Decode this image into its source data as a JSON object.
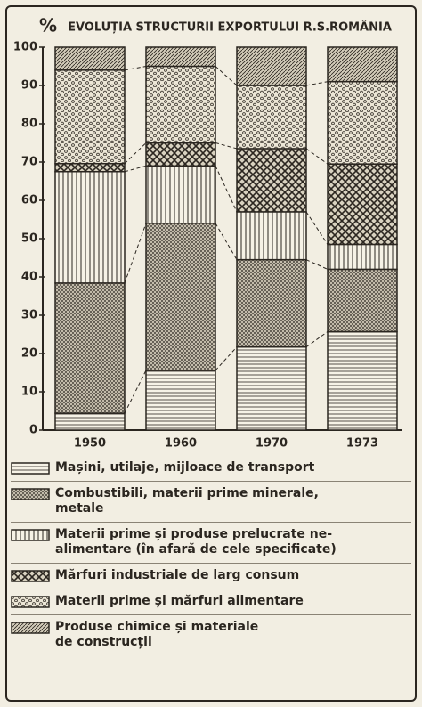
{
  "chart_data": {
    "type": "stacked_bar",
    "title": "EVOLUȚIA STRUCTURII EXPORTULUI R.S.ROMÂNIA",
    "y_label": "%",
    "categories": [
      "1950",
      "1960",
      "1970",
      "1973"
    ],
    "ylim": [
      0,
      100
    ],
    "yticks": [
      0,
      10,
      20,
      30,
      40,
      50,
      60,
      70,
      80,
      90,
      100
    ],
    "series": [
      {
        "name": "Mașini, utilaje, mijloace de transport",
        "color": "#2b2620",
        "pattern": "hlines",
        "values": [
          4.4,
          15.6,
          21.7,
          25.7
        ]
      },
      {
        "name": "Combustibili, materii prime minerale,\nmetale",
        "color": "#2b2620",
        "pattern": "fine",
        "values": [
          34,
          38.4,
          22.8,
          16.3
        ]
      },
      {
        "name": "Materii prime și produse prelucrate ne-\nalimentare (în afară de cele specificate)",
        "color": "#2b2620",
        "pattern": "vlines",
        "values": [
          29.1,
          15,
          12.5,
          6.5
        ]
      },
      {
        "name": "Mărfuri industriale de larg consum",
        "color": "#2b2620",
        "pattern": "cross",
        "values": [
          2.1,
          6,
          16.5,
          21
        ]
      },
      {
        "name": "Materii prime și mărfuri alimentare",
        "color": "#2b2620",
        "pattern": "circles",
        "values": [
          24.4,
          20,
          16.5,
          21.5
        ]
      },
      {
        "name": "Produse chimice și materiale\nde construcții",
        "color": "#2b2620",
        "pattern": "diag",
        "values": [
          6,
          5,
          10,
          9
        ]
      }
    ]
  }
}
